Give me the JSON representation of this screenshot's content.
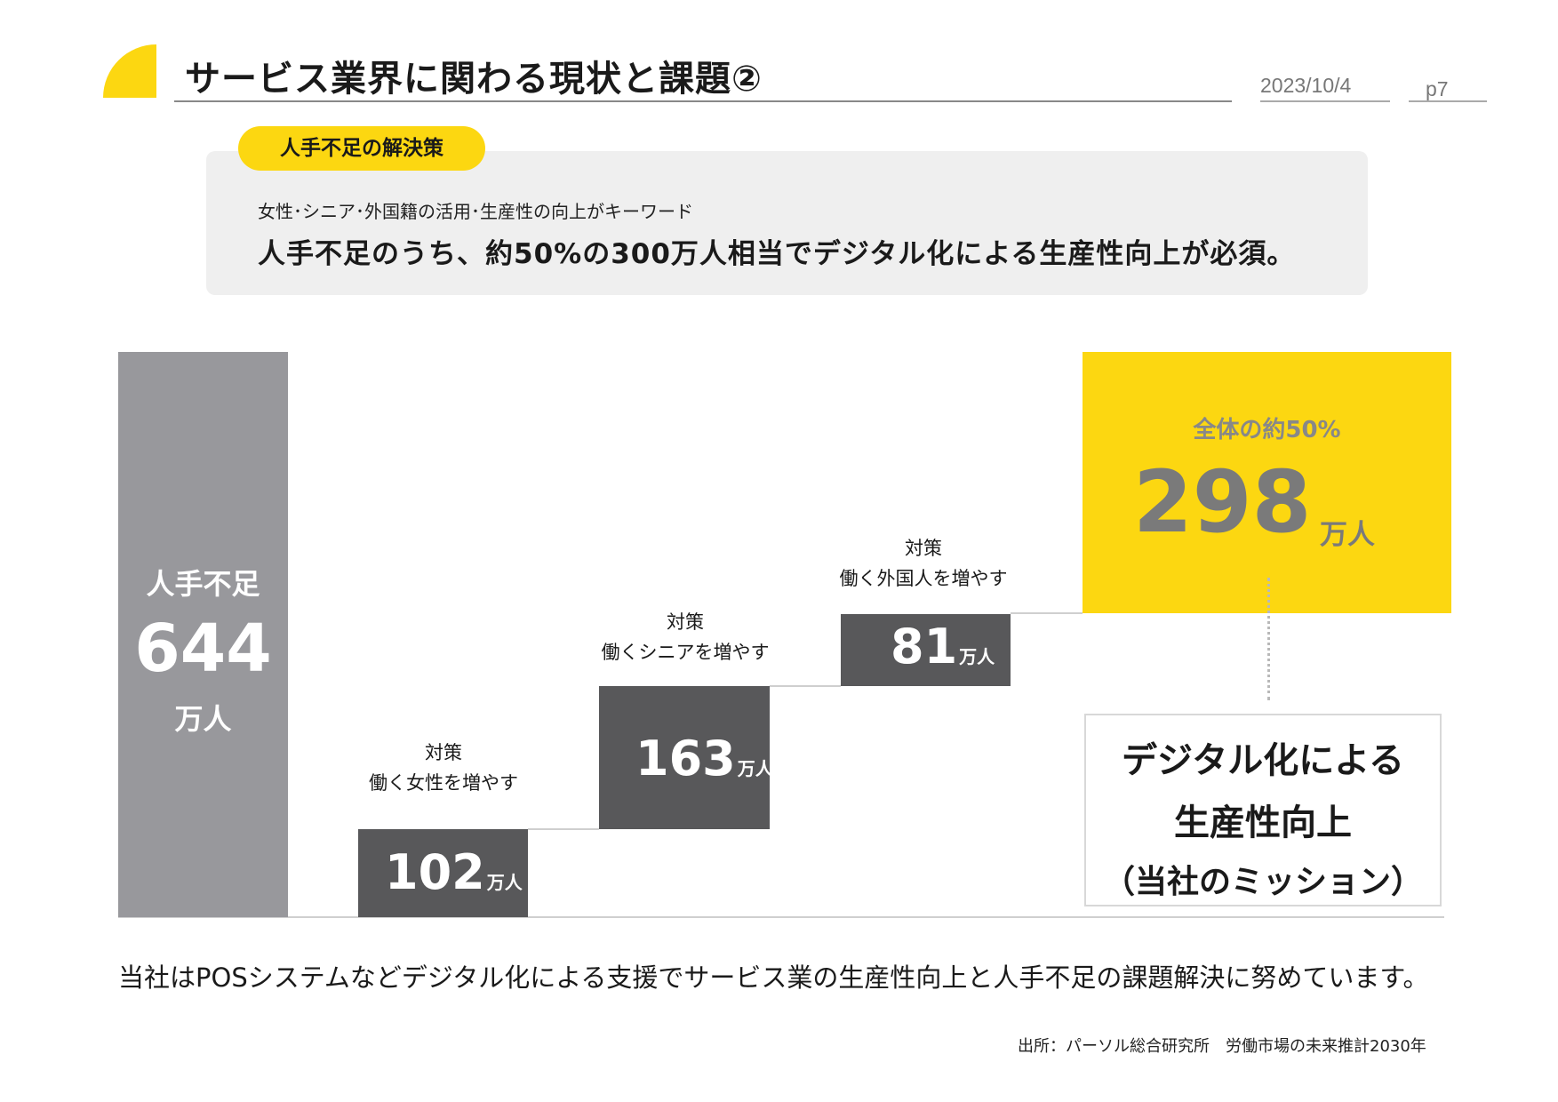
{
  "header": {
    "title": "サービス業界に関わる現状と課題②",
    "date": "2023/10/4",
    "page": "p7"
  },
  "summary": {
    "tag": "人手不足の解決策",
    "keywords": "女性･シニア･外国籍の活用･生産性の向上がキーワード",
    "headline": "人手不足のうち、約50%の300万人相当でデジタル化による生産性向上が必須。"
  },
  "chart_data": {
    "type": "bar",
    "subtype": "waterfall",
    "unit": "万人",
    "total": {
      "label": "人手不足",
      "value": 644,
      "unit": "万人"
    },
    "categories": [
      "働く女性を増やす",
      "働くシニアを増やす",
      "働く外国人を増やす",
      "デジタル化による生産性向上"
    ],
    "values": [
      102,
      163,
      81,
      298
    ],
    "steps": [
      {
        "prefix": "対策",
        "label": "働く女性を増やす",
        "value": 102,
        "unit": "万人"
      },
      {
        "prefix": "対策",
        "label": "働くシニアを増やす",
        "value": 163,
        "unit": "万人"
      },
      {
        "prefix": "対策",
        "label": "働く外国人を増やす",
        "value": 81,
        "unit": "万人"
      }
    ],
    "highlight": {
      "caption": "全体の約50%",
      "value": 298,
      "unit": "万人",
      "description": [
        "デジタル化による",
        "生産性向上",
        "（当社のミッション）"
      ]
    }
  },
  "colors": {
    "accent_yellow": "#fcd711",
    "total_bar": "#98989c",
    "step_bar": "#58585a",
    "highlight_text": "#7a7a7a"
  },
  "footer": {
    "statement": "当社はPOSシステムなどデジタル化による支援でサービス業の生産性向上と人手不足の課題解決に努めています。",
    "source": "出所：パーソル総合研究所　労働市場の未来推計2030年"
  }
}
